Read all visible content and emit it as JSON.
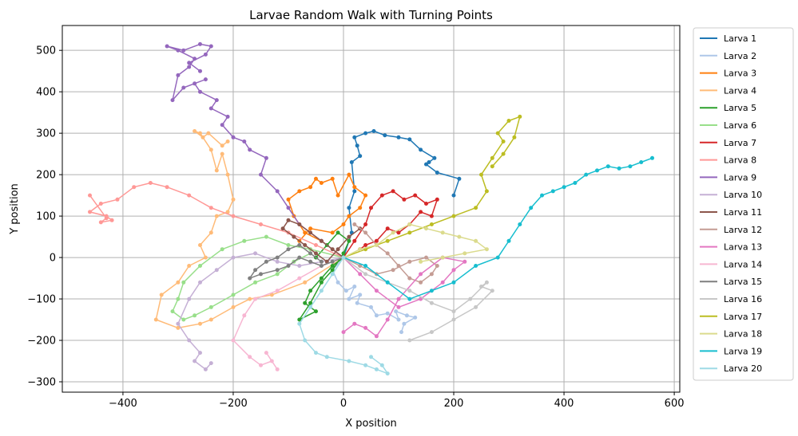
{
  "chart_data": {
    "type": "line",
    "title": "Larvae Random Walk with Turning Points",
    "xlabel": "X position",
    "ylabel": "Y position",
    "xlim": [
      -510,
      610
    ],
    "ylim": [
      -325,
      560
    ],
    "xticks": [
      -400,
      -200,
      0,
      200,
      400,
      600
    ],
    "yticks": [
      -300,
      -200,
      -100,
      0,
      100,
      200,
      300,
      400,
      500
    ],
    "grid": true,
    "legend_position": "outside-right",
    "markers": true,
    "series": [
      {
        "name": "Larva 1",
        "color": "#1f77b4",
        "x": [
          0,
          15,
          10,
          20,
          15,
          30,
          25,
          20,
          40,
          55,
          75,
          100,
          120,
          140,
          165,
          155,
          150,
          170,
          210,
          200
        ],
        "y": [
          0,
          60,
          120,
          160,
          230,
          245,
          270,
          290,
          300,
          305,
          295,
          290,
          285,
          260,
          240,
          230,
          225,
          205,
          190,
          150
        ]
      },
      {
        "name": "Larva 2",
        "color": "#aec7e8",
        "x": [
          0,
          -20,
          -10,
          5,
          20,
          10,
          30,
          25,
          50,
          60,
          80,
          100,
          95,
          115,
          130,
          110,
          105
        ],
        "y": [
          0,
          -30,
          -60,
          -80,
          -70,
          -100,
          -90,
          -110,
          -120,
          -140,
          -135,
          -150,
          -130,
          -140,
          -145,
          -160,
          -180
        ]
      },
      {
        "name": "Larva 3",
        "color": "#ff7f0e",
        "x": [
          0,
          -40,
          -70,
          -90,
          -100,
          -80,
          -60,
          -50,
          -40,
          -20,
          -10,
          10,
          20,
          40,
          30,
          10,
          0,
          -20,
          -60,
          -80
        ],
        "y": [
          0,
          40,
          60,
          100,
          140,
          160,
          170,
          190,
          180,
          190,
          150,
          200,
          170,
          150,
          120,
          100,
          80,
          60,
          70,
          40
        ]
      },
      {
        "name": "Larva 4",
        "color": "#ffbb78",
        "x": [
          0,
          -70,
          -130,
          -170,
          -200,
          -240,
          -260,
          -300,
          -340,
          -330,
          -300,
          -280,
          -250,
          -260,
          -240,
          -230,
          -210,
          -200,
          -210,
          -220,
          -230,
          -240,
          -260,
          -270,
          -255,
          -245,
          -220,
          -210
        ],
        "y": [
          0,
          -60,
          -90,
          -100,
          -120,
          -150,
          -160,
          -170,
          -150,
          -90,
          -60,
          -20,
          0,
          30,
          60,
          100,
          110,
          140,
          200,
          250,
          210,
          260,
          300,
          305,
          290,
          300,
          270,
          280
        ]
      },
      {
        "name": "Larva 5",
        "color": "#2ca02c",
        "x": [
          0,
          -20,
          -40,
          -60,
          -70,
          -50,
          -80,
          -60,
          -40,
          -20,
          0,
          10,
          -10,
          -30,
          -50
        ],
        "y": [
          0,
          -20,
          -50,
          -80,
          -110,
          -130,
          -150,
          -110,
          -60,
          -30,
          10,
          40,
          60,
          30,
          0
        ]
      },
      {
        "name": "Larva 6",
        "color": "#98df8a",
        "x": [
          0,
          -60,
          -100,
          -140,
          -180,
          -220,
          -260,
          -290,
          -300,
          -310,
          -290,
          -270,
          -240,
          -200,
          -160,
          -120,
          -90,
          -60
        ],
        "y": [
          0,
          20,
          30,
          50,
          40,
          20,
          -20,
          -60,
          -100,
          -130,
          -150,
          -140,
          -120,
          -90,
          -60,
          -40,
          -10,
          10
        ]
      },
      {
        "name": "Larva 7",
        "color": "#d62728",
        "x": [
          0,
          20,
          40,
          50,
          70,
          90,
          110,
          130,
          150,
          170,
          160,
          140,
          120,
          100,
          80,
          60,
          40,
          30
        ],
        "y": [
          0,
          40,
          80,
          120,
          150,
          160,
          140,
          150,
          130,
          140,
          100,
          110,
          80,
          60,
          70,
          40,
          30,
          20
        ]
      },
      {
        "name": "Larva 8",
        "color": "#ff9896",
        "x": [
          0,
          -50,
          -100,
          -150,
          -200,
          -240,
          -280,
          -320,
          -350,
          -380,
          -410,
          -440,
          -460,
          -430,
          -420,
          -440,
          -430,
          -460
        ],
        "y": [
          0,
          30,
          60,
          80,
          100,
          120,
          150,
          170,
          180,
          170,
          140,
          130,
          110,
          100,
          90,
          85,
          95,
          150
        ]
      },
      {
        "name": "Larva 9",
        "color": "#9467bd",
        "x": [
          0,
          -40,
          -80,
          -100,
          -120,
          -150,
          -140,
          -170,
          -180,
          -200,
          -220,
          -210,
          -240,
          -230,
          -260,
          -270,
          -250,
          -290,
          -310,
          -300,
          -280,
          -270,
          -300,
          -320,
          -290,
          -260,
          -240,
          -250,
          -280,
          -260
        ],
        "y": [
          0,
          40,
          80,
          120,
          160,
          200,
          240,
          260,
          280,
          290,
          320,
          340,
          360,
          380,
          400,
          420,
          430,
          410,
          380,
          440,
          460,
          480,
          500,
          510,
          500,
          515,
          510,
          490,
          470,
          450
        ]
      },
      {
        "name": "Larva 10",
        "color": "#c5b0d5",
        "x": [
          0,
          -40,
          -80,
          -120,
          -160,
          -200,
          -230,
          -260,
          -280,
          -300,
          -280,
          -260,
          -270,
          -250,
          -240
        ],
        "y": [
          0,
          -10,
          -20,
          -10,
          10,
          0,
          -30,
          -60,
          -100,
          -160,
          -200,
          -230,
          -250,
          -270,
          -255
        ]
      },
      {
        "name": "Larva 11",
        "color": "#8c564b",
        "x": [
          0,
          -20,
          -40,
          -60,
          -80,
          -100,
          -110,
          -90,
          -70,
          -50,
          -30,
          -10,
          10,
          30
        ],
        "y": [
          0,
          20,
          40,
          60,
          80,
          90,
          70,
          50,
          30,
          10,
          -10,
          20,
          50,
          70
        ]
      },
      {
        "name": "Larva 12",
        "color": "#c49c94",
        "x": [
          0,
          30,
          60,
          90,
          120,
          150,
          170,
          160,
          140,
          120,
          100,
          80,
          60,
          40,
          20
        ],
        "y": [
          0,
          -20,
          -40,
          -30,
          -10,
          0,
          -20,
          -40,
          -60,
          -50,
          -20,
          10,
          30,
          60,
          80
        ]
      },
      {
        "name": "Larva 13",
        "color": "#e377c2",
        "x": [
          0,
          30,
          60,
          100,
          140,
          180,
          200,
          220,
          180,
          140,
          100,
          80,
          60,
          40,
          20,
          0
        ],
        "y": [
          0,
          -40,
          -80,
          -120,
          -100,
          -60,
          -30,
          -10,
          0,
          -40,
          -100,
          -150,
          -190,
          -170,
          -160,
          -180
        ]
      },
      {
        "name": "Larva 14",
        "color": "#f7b6d2",
        "x": [
          0,
          -40,
          -80,
          -120,
          -160,
          -180,
          -200,
          -170,
          -150,
          -130,
          -140,
          -120
        ],
        "y": [
          0,
          -20,
          -50,
          -80,
          -100,
          -140,
          -200,
          -240,
          -260,
          -250,
          -230,
          -270
        ]
      },
      {
        "name": "Larva 15",
        "color": "#7f7f7f",
        "x": [
          0,
          -20,
          -40,
          -60,
          -80,
          -100,
          -120,
          -150,
          -170,
          -160,
          -140,
          -120,
          -100,
          -80,
          -60,
          -40
        ],
        "y": [
          0,
          -10,
          -20,
          -10,
          0,
          -20,
          -30,
          -40,
          -50,
          -30,
          -10,
          0,
          20,
          30,
          10,
          -10
        ]
      },
      {
        "name": "Larva 16",
        "color": "#c7c7c7",
        "x": [
          0,
          40,
          80,
          120,
          160,
          200,
          230,
          260,
          250,
          270,
          240,
          200,
          160,
          120
        ],
        "y": [
          0,
          -40,
          -60,
          -80,
          -110,
          -130,
          -100,
          -60,
          -70,
          -80,
          -120,
          -150,
          -180,
          -200
        ]
      },
      {
        "name": "Larva 17",
        "color": "#bcbd22",
        "x": [
          0,
          40,
          80,
          120,
          160,
          200,
          240,
          260,
          250,
          270,
          290,
          280,
          300,
          320,
          310,
          290,
          270
        ],
        "y": [
          0,
          20,
          40,
          60,
          80,
          100,
          120,
          160,
          200,
          240,
          280,
          300,
          330,
          340,
          290,
          250,
          220
        ]
      },
      {
        "name": "Larva 18",
        "color": "#dbdb8d",
        "x": [
          0,
          30,
          60,
          90,
          120,
          150,
          180,
          210,
          240,
          260,
          220,
          180,
          140
        ],
        "y": [
          0,
          20,
          30,
          60,
          80,
          70,
          60,
          50,
          40,
          20,
          10,
          0,
          -10
        ]
      },
      {
        "name": "Larva 19",
        "color": "#17becf",
        "x": [
          0,
          40,
          80,
          120,
          160,
          200,
          240,
          280,
          300,
          320,
          340,
          360,
          380,
          400,
          420,
          440,
          460,
          480,
          500,
          520,
          540,
          560
        ],
        "y": [
          0,
          -20,
          -60,
          -100,
          -80,
          -60,
          -20,
          0,
          40,
          80,
          120,
          150,
          160,
          170,
          180,
          200,
          210,
          220,
          215,
          220,
          230,
          240
        ]
      },
      {
        "name": "Larva 20",
        "color": "#9edae5",
        "x": [
          0,
          -20,
          -40,
          -60,
          -80,
          -70,
          -50,
          -30,
          10,
          40,
          60,
          80,
          70,
          50
        ],
        "y": [
          0,
          -40,
          -80,
          -120,
          -160,
          -200,
          -230,
          -240,
          -250,
          -260,
          -270,
          -280,
          -260,
          -240
        ]
      }
    ]
  }
}
